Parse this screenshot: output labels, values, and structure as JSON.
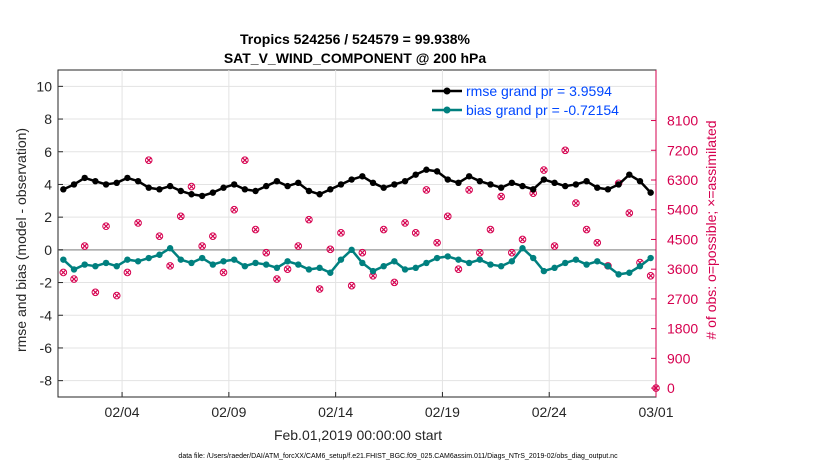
{
  "chart_data": {
    "type": "line",
    "title": "Tropics 524256 / 524579 = 99.938%",
    "subtitle": "SAT_V_WIND_COMPONENT @ 200 hPa",
    "xlabel": "Feb.01,2019 00:00:00 start",
    "ylabel": "rmse and bias (model - observation)",
    "ylabel_right": "# of obs: o=possible; ×=assimilated",
    "xlim": [
      0,
      28
    ],
    "ylim": [
      -9,
      11
    ],
    "ylim_right": [
      -270,
      9630
    ],
    "x_tick_values": [
      3,
      8,
      13,
      18,
      23,
      28
    ],
    "x_tick_labels": [
      "02/04",
      "02/09",
      "02/14",
      "02/19",
      "02/24",
      "03/01"
    ],
    "y_ticks": [
      10,
      8,
      6,
      4,
      2,
      0,
      -2,
      -4,
      -6,
      -8
    ],
    "y_ticks_right": [
      8100,
      7200,
      6300,
      5400,
      4500,
      3600,
      2700,
      1800,
      900,
      0
    ],
    "zero_line": 0,
    "series": [
      {
        "name": "rmse grand pr = 3.9594",
        "color": "#000000",
        "marker": "circle",
        "x": [
          0.25,
          0.75,
          1.25,
          1.75,
          2.25,
          2.75,
          3.25,
          3.75,
          4.25,
          4.75,
          5.25,
          5.75,
          6.25,
          6.75,
          7.25,
          7.75,
          8.25,
          8.75,
          9.25,
          9.75,
          10.25,
          10.75,
          11.25,
          11.75,
          12.25,
          12.75,
          13.25,
          13.75,
          14.25,
          14.75,
          15.25,
          15.75,
          16.25,
          16.75,
          17.25,
          17.75,
          18.25,
          18.75,
          19.25,
          19.75,
          20.25,
          20.75,
          21.25,
          21.75,
          22.25,
          22.75,
          23.25,
          23.75,
          24.25,
          24.75,
          25.25,
          25.75,
          26.25,
          26.75,
          27.25,
          27.75
        ],
        "values": [
          3.7,
          4.0,
          4.4,
          4.2,
          4.0,
          4.1,
          4.4,
          4.2,
          3.8,
          3.7,
          3.9,
          3.6,
          3.4,
          3.3,
          3.5,
          3.8,
          4.0,
          3.7,
          3.6,
          3.9,
          4.2,
          3.9,
          4.1,
          3.6,
          3.4,
          3.7,
          4.0,
          4.3,
          4.5,
          4.1,
          3.8,
          4.0,
          4.2,
          4.6,
          4.9,
          4.8,
          4.3,
          4.1,
          4.5,
          4.2,
          4.0,
          3.8,
          4.1,
          3.9,
          3.7,
          4.3,
          4.1,
          3.9,
          4.0,
          4.2,
          3.8,
          3.7,
          4.0,
          4.6,
          4.2,
          3.5
        ]
      },
      {
        "name": "bias grand pr = -0.72154",
        "color": "#00807f",
        "marker": "circle",
        "x": [
          0.25,
          0.75,
          1.25,
          1.75,
          2.25,
          2.75,
          3.25,
          3.75,
          4.25,
          4.75,
          5.25,
          5.75,
          6.25,
          6.75,
          7.25,
          7.75,
          8.25,
          8.75,
          9.25,
          9.75,
          10.25,
          10.75,
          11.25,
          11.75,
          12.25,
          12.75,
          13.25,
          13.75,
          14.25,
          14.75,
          15.25,
          15.75,
          16.25,
          16.75,
          17.25,
          17.75,
          18.25,
          18.75,
          19.25,
          19.75,
          20.25,
          20.75,
          21.25,
          21.75,
          22.25,
          22.75,
          23.25,
          23.75,
          24.25,
          24.75,
          25.25,
          25.75,
          26.25,
          26.75,
          27.25,
          27.75
        ],
        "values": [
          -0.6,
          -1.2,
          -0.9,
          -1.0,
          -0.8,
          -1.0,
          -0.6,
          -0.7,
          -0.5,
          -0.3,
          0.1,
          -0.6,
          -0.8,
          -0.5,
          -0.9,
          -0.7,
          -0.6,
          -1.0,
          -0.8,
          -0.9,
          -1.1,
          -0.7,
          -0.9,
          -1.2,
          -1.1,
          -1.4,
          -0.6,
          0.0,
          -0.8,
          -1.3,
          -1.0,
          -0.7,
          -1.2,
          -1.1,
          -0.8,
          -0.5,
          -0.4,
          -0.6,
          -0.8,
          -0.6,
          -0.9,
          -1.0,
          -0.7,
          0.1,
          -0.5,
          -1.3,
          -1.1,
          -0.8,
          -0.6,
          -0.9,
          -0.7,
          -1.0,
          -1.5,
          -1.4,
          -1.0,
          -0.5
        ]
      }
    ],
    "obs_counts": {
      "name": "# of obs",
      "color": "#d6004f",
      "x": [
        0.25,
        0.75,
        1.25,
        1.75,
        2.25,
        2.75,
        3.25,
        3.75,
        4.25,
        4.75,
        5.25,
        5.75,
        6.25,
        6.75,
        7.25,
        7.75,
        8.25,
        8.75,
        9.25,
        9.75,
        10.25,
        10.75,
        11.25,
        11.75,
        12.25,
        12.75,
        13.25,
        13.75,
        14.25,
        14.75,
        15.25,
        15.75,
        16.25,
        16.75,
        17.25,
        17.75,
        18.25,
        18.75,
        19.25,
        19.75,
        20.25,
        20.75,
        21.25,
        21.75,
        22.25,
        22.75,
        23.25,
        23.75,
        24.25,
        24.75,
        25.25,
        25.75,
        26.25,
        26.75,
        27.25,
        27.75
      ],
      "values": [
        3500,
        3300,
        4300,
        2900,
        4900,
        2800,
        3500,
        5000,
        6900,
        4600,
        3700,
        5200,
        6100,
        4300,
        4600,
        3500,
        5400,
        6900,
        4800,
        4100,
        3300,
        3600,
        4300,
        5100,
        3000,
        4200,
        4700,
        3100,
        4100,
        3400,
        4800,
        3200,
        5000,
        4700,
        6000,
        4400,
        5200,
        3600,
        6000,
        4100,
        4800,
        5800,
        4100,
        4500,
        5900,
        6600,
        4300,
        7200,
        5600,
        4800,
        4400,
        3700,
        6200,
        5300,
        3800,
        3400
      ],
      "end_point": [
        28,
        0
      ]
    }
  },
  "legend": {
    "rmse_label": "rmse grand pr = 3.9594",
    "bias_label": "bias grand pr = -0.72154"
  },
  "footer": {
    "data_file": "data file: /Users/raeder/DAI/ATM_forcXX/CAM6_setup/f.e21.FHIST_BGC.f09_025.CAM6assim.011/Diags_NTrS_2019-02/obs_diag_output.nc"
  }
}
